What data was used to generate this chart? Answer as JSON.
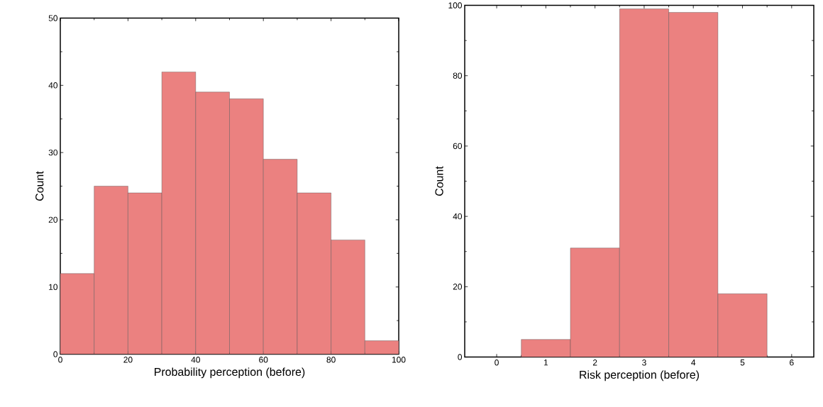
{
  "chart_data": [
    {
      "type": "histogram",
      "xlabel": "Probability perception (before)",
      "ylabel": "Count",
      "bins": [
        0,
        10,
        20,
        30,
        40,
        50,
        60,
        70,
        80,
        90,
        100
      ],
      "values": [
        12,
        25,
        24,
        42,
        39,
        38,
        29,
        24,
        17,
        2
      ],
      "color": "#eb8180",
      "xlim": [
        0,
        100
      ],
      "ylim": [
        0,
        50
      ],
      "xticks": [
        0,
        20,
        40,
        60,
        80,
        100
      ],
      "yticks": [
        0,
        10,
        20,
        30,
        40,
        50
      ]
    },
    {
      "type": "histogram",
      "xlabel": "Risk perception (before)",
      "ylabel": "Count",
      "bins": [
        0.5,
        1.5,
        2.5,
        3.5,
        4.5,
        5.5
      ],
      "values": [
        5,
        31,
        99,
        98,
        18
      ],
      "color": "#eb8180",
      "xlim": [
        -0.65,
        6.45
      ],
      "ylim": [
        0,
        100
      ],
      "xticks": [
        0,
        1,
        2,
        3,
        4,
        5,
        6
      ],
      "yticks": [
        0,
        20,
        40,
        60,
        80,
        100
      ]
    }
  ]
}
